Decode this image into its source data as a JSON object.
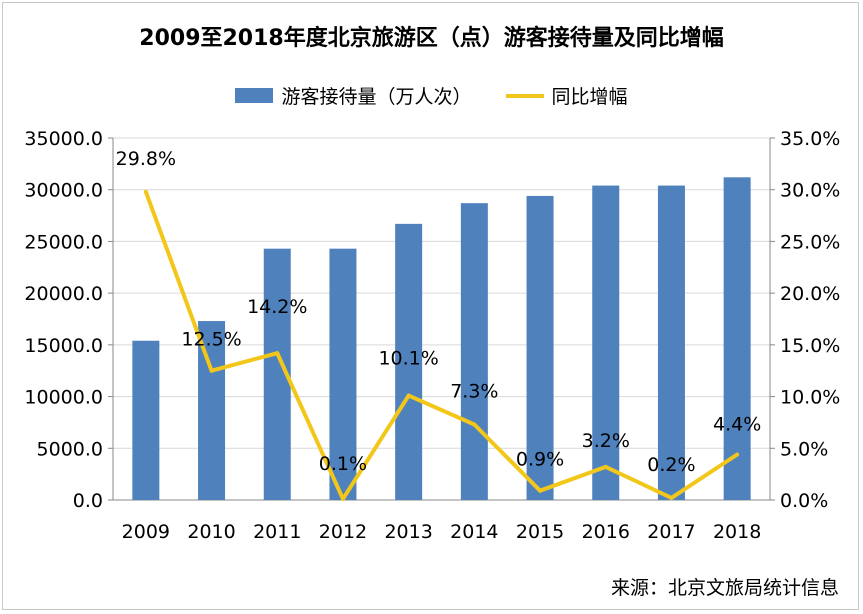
{
  "chart_data": {
    "type": "bar",
    "title": "2009至2018年度北京旅游区（点）游客接待量及同比增幅",
    "categories": [
      "2009",
      "2010",
      "2011",
      "2012",
      "2013",
      "2014",
      "2015",
      "2016",
      "2017",
      "2018"
    ],
    "series": [
      {
        "name": "游客接待量（万人次）",
        "type": "bar",
        "axis": "left",
        "color": "#4f81bd",
        "values": [
          15400,
          17300,
          24300,
          24300,
          26700,
          28700,
          29400,
          30400,
          30400,
          31200
        ]
      },
      {
        "name": "同比增幅",
        "type": "line",
        "axis": "right",
        "color": "#f2c71a",
        "values": [
          29.8,
          12.5,
          14.2,
          0.1,
          10.1,
          7.3,
          0.9,
          3.2,
          0.2,
          4.4
        ],
        "labels": [
          "29.8%",
          "12.5%",
          "14.2%",
          "0.1%",
          "10.1%",
          "7.3%",
          "0.9%",
          "3.2%",
          "0.2%",
          "4.4%"
        ]
      }
    ],
    "y_left": {
      "ylim": [
        0,
        35000
      ],
      "ticks": [
        "0.0",
        "5000.0",
        "10000.0",
        "15000.0",
        "20000.0",
        "25000.0",
        "30000.0",
        "35000.0"
      ]
    },
    "y_right": {
      "ylim": [
        0,
        35
      ],
      "ticks": [
        "0.0%",
        "5.0%",
        "10.0%",
        "15.0%",
        "20.0%",
        "25.0%",
        "30.0%",
        "35.0%"
      ]
    },
    "grid": true,
    "legend": "top"
  },
  "source": "来源：北京文旅局统计信息"
}
